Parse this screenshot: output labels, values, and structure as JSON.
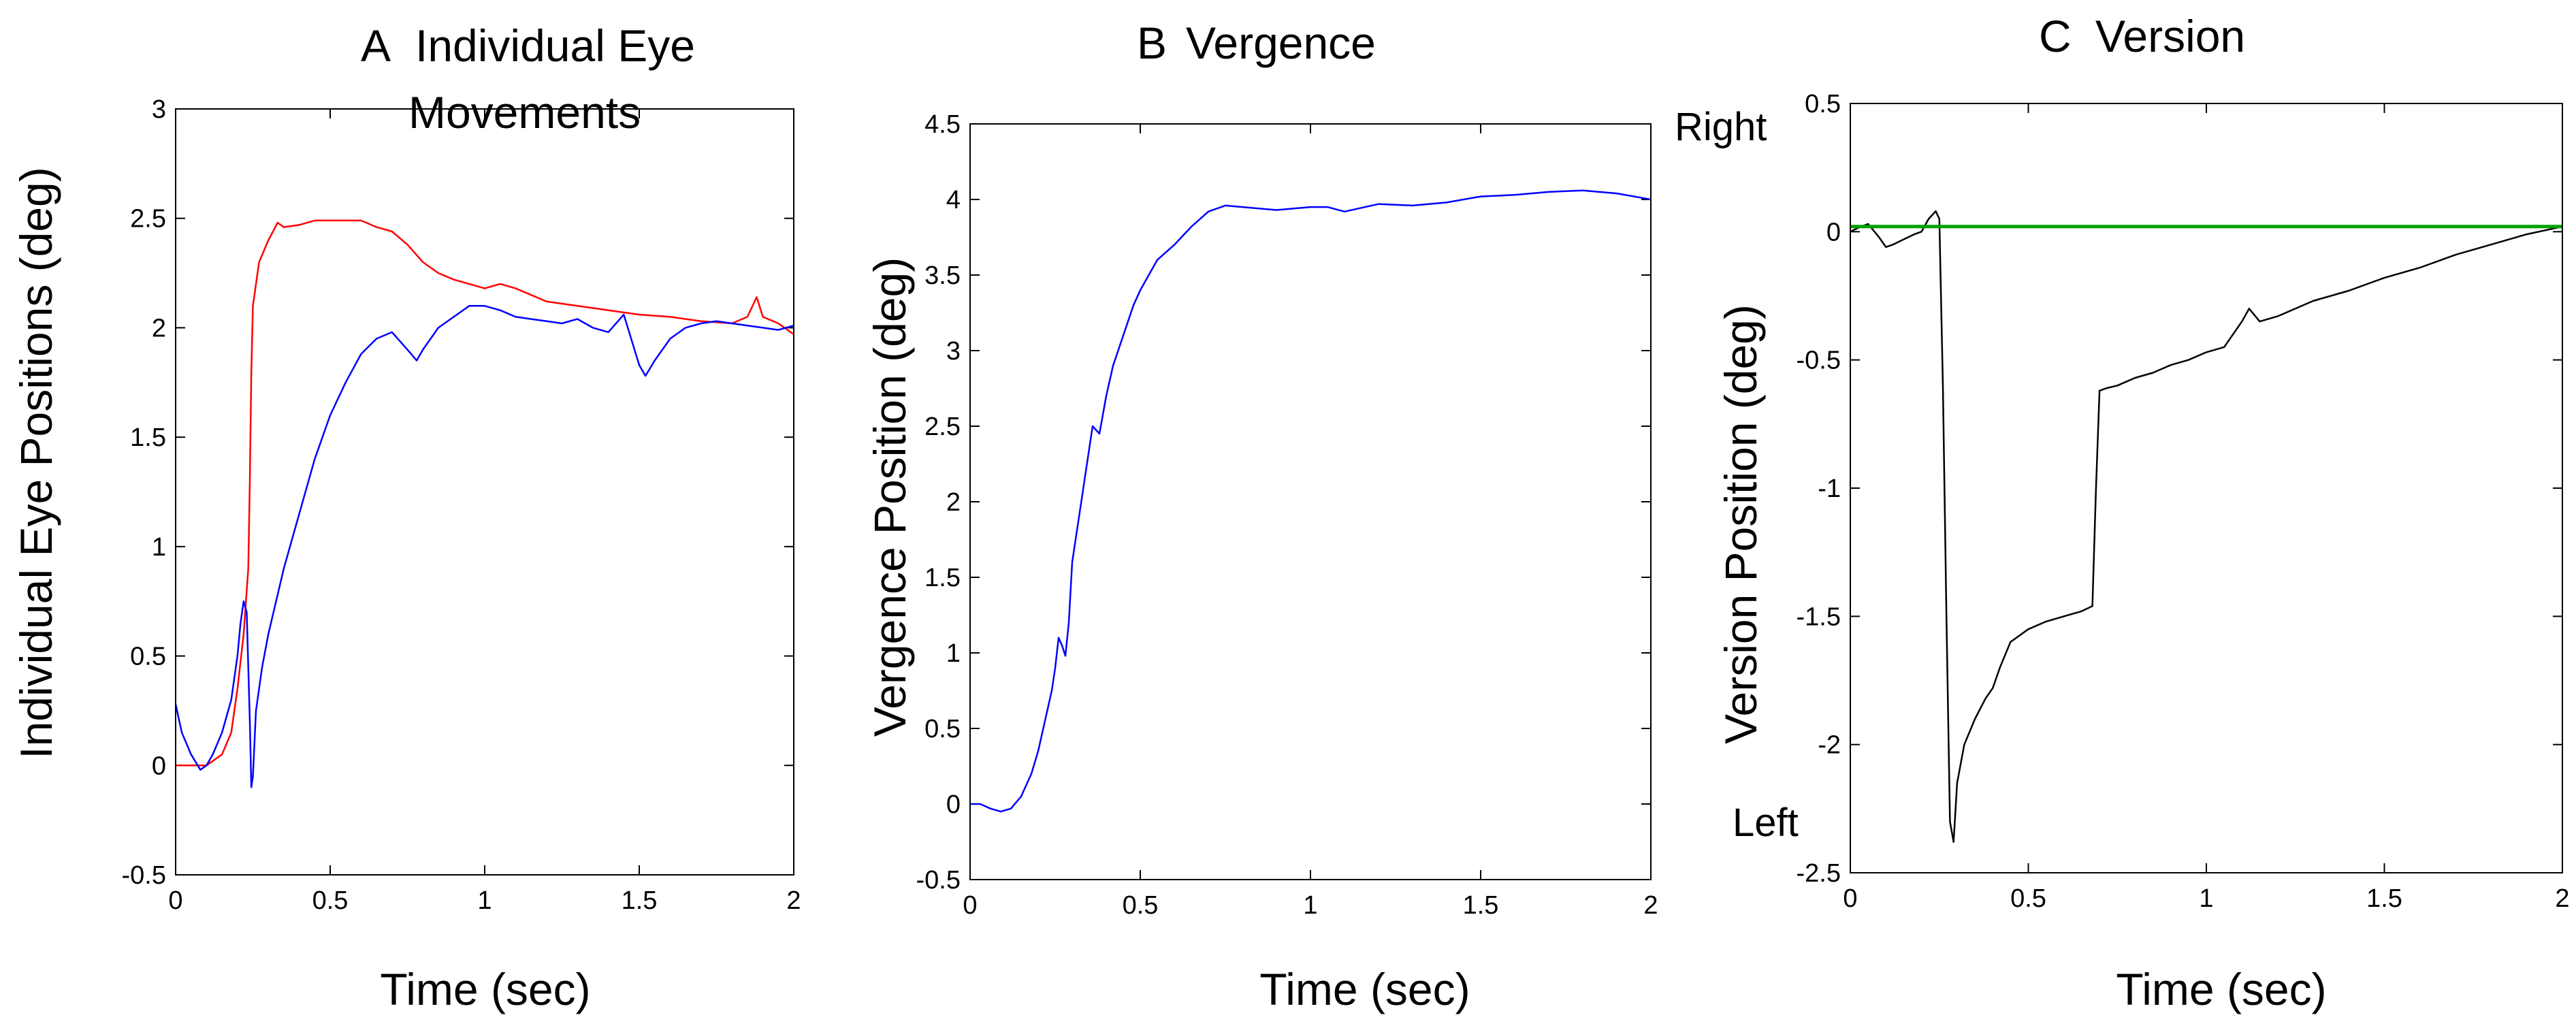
{
  "chart_data": [
    {
      "type": "line",
      "panel_letter": "A",
      "title_lines": [
        "Individual Eye",
        "Movements"
      ],
      "xlabel": "Time (sec)",
      "ylabel": "Individual Eye Positions (deg)",
      "xlim": [
        0,
        2
      ],
      "ylim": [
        -0.5,
        3
      ],
      "xticks": [
        0,
        0.5,
        1,
        1.5,
        2
      ],
      "xtick_labels": [
        "0",
        "0.5",
        "1",
        "1.5",
        "2"
      ],
      "yticks": [
        -0.5,
        0,
        0.5,
        1,
        1.5,
        2,
        2.5,
        3
      ],
      "ytick_labels": [
        "-0.5",
        "0",
        "0.5",
        "1",
        "1.5",
        "2",
        "2.5",
        "3"
      ],
      "grid": false,
      "series": [
        {
          "color": "#ff0000",
          "x": [
            0,
            0.05,
            0.1,
            0.15,
            0.18,
            0.2,
            0.22,
            0.235,
            0.24,
            0.245,
            0.25,
            0.27,
            0.3,
            0.33,
            0.35,
            0.4,
            0.45,
            0.5,
            0.55,
            0.6,
            0.65,
            0.7,
            0.75,
            0.8,
            0.85,
            0.9,
            0.95,
            1.0,
            1.05,
            1.1,
            1.15,
            1.2,
            1.3,
            1.4,
            1.5,
            1.6,
            1.7,
            1.8,
            1.85,
            1.88,
            1.9,
            1.95,
            2.0
          ],
          "y": [
            0.0,
            0.0,
            0.0,
            0.05,
            0.15,
            0.35,
            0.6,
            0.9,
            1.3,
            1.8,
            2.1,
            2.3,
            2.4,
            2.48,
            2.46,
            2.47,
            2.49,
            2.49,
            2.49,
            2.49,
            2.46,
            2.44,
            2.38,
            2.3,
            2.25,
            2.22,
            2.2,
            2.18,
            2.2,
            2.18,
            2.15,
            2.12,
            2.1,
            2.08,
            2.06,
            2.05,
            2.03,
            2.02,
            2.05,
            2.14,
            2.05,
            2.02,
            1.97
          ]
        },
        {
          "color": "#0000ff",
          "x": [
            0,
            0.02,
            0.05,
            0.08,
            0.1,
            0.12,
            0.15,
            0.18,
            0.2,
            0.21,
            0.22,
            0.23,
            0.24,
            0.245,
            0.25,
            0.26,
            0.28,
            0.3,
            0.35,
            0.4,
            0.45,
            0.5,
            0.55,
            0.6,
            0.65,
            0.7,
            0.75,
            0.78,
            0.8,
            0.85,
            0.9,
            0.95,
            1.0,
            1.05,
            1.1,
            1.15,
            1.2,
            1.25,
            1.3,
            1.35,
            1.4,
            1.45,
            1.5,
            1.52,
            1.55,
            1.6,
            1.65,
            1.7,
            1.75,
            1.8,
            1.85,
            1.9,
            1.95,
            2.0
          ],
          "y": [
            0.28,
            0.15,
            0.05,
            -0.02,
            0.0,
            0.05,
            0.15,
            0.3,
            0.5,
            0.65,
            0.75,
            0.7,
            0.2,
            -0.1,
            -0.05,
            0.25,
            0.45,
            0.6,
            0.9,
            1.15,
            1.4,
            1.6,
            1.75,
            1.88,
            1.95,
            1.98,
            1.9,
            1.85,
            1.9,
            2.0,
            2.05,
            2.1,
            2.1,
            2.08,
            2.05,
            2.04,
            2.03,
            2.02,
            2.04,
            2.0,
            1.98,
            2.06,
            1.83,
            1.78,
            1.85,
            1.95,
            2.0,
            2.02,
            2.03,
            2.02,
            2.01,
            2.0,
            1.99,
            2.01
          ]
        }
      ]
    },
    {
      "type": "line",
      "panel_letter": "B",
      "title_lines": [
        "Vergence"
      ],
      "xlabel": "Time (sec)",
      "ylabel": "Vergence Position (deg)",
      "xlim": [
        0,
        2
      ],
      "ylim": [
        -0.5,
        4.5
      ],
      "xticks": [
        0,
        0.5,
        1,
        1.5,
        2
      ],
      "xtick_labels": [
        "0",
        "0.5",
        "1",
        "1.5",
        "2"
      ],
      "yticks": [
        -0.5,
        0,
        0.5,
        1,
        1.5,
        2,
        2.5,
        3,
        3.5,
        4,
        4.5
      ],
      "ytick_labels": [
        "-0.5",
        "0",
        "0.5",
        "1",
        "1.5",
        "2",
        "2.5",
        "3",
        "3.5",
        "4",
        "4.5"
      ],
      "grid": false,
      "series": [
        {
          "color": "#0000ff",
          "x": [
            0,
            0.03,
            0.06,
            0.09,
            0.12,
            0.15,
            0.18,
            0.2,
            0.22,
            0.24,
            0.25,
            0.26,
            0.27,
            0.28,
            0.29,
            0.3,
            0.32,
            0.34,
            0.36,
            0.38,
            0.4,
            0.42,
            0.45,
            0.48,
            0.5,
            0.55,
            0.6,
            0.65,
            0.7,
            0.75,
            0.8,
            0.9,
            1.0,
            1.05,
            1.1,
            1.2,
            1.3,
            1.4,
            1.5,
            1.6,
            1.7,
            1.8,
            1.9,
            2.0
          ],
          "y": [
            0.0,
            0.0,
            -0.03,
            -0.05,
            -0.03,
            0.05,
            0.2,
            0.35,
            0.55,
            0.75,
            0.9,
            1.1,
            1.05,
            0.98,
            1.2,
            1.6,
            1.9,
            2.2,
            2.5,
            2.45,
            2.7,
            2.9,
            3.1,
            3.3,
            3.4,
            3.6,
            3.7,
            3.82,
            3.92,
            3.96,
            3.95,
            3.93,
            3.95,
            3.95,
            3.92,
            3.97,
            3.96,
            3.98,
            4.02,
            4.03,
            4.05,
            4.06,
            4.04,
            4.0
          ]
        }
      ]
    },
    {
      "type": "line",
      "panel_letter": "C",
      "title_lines": [
        "Version"
      ],
      "xlabel": "Time (sec)",
      "ylabel": "Version Position (deg)",
      "right_label": "Right",
      "left_label": "Left",
      "xlim": [
        0,
        2
      ],
      "ylim": [
        -2.5,
        0.5
      ],
      "xticks": [
        0,
        0.5,
        1,
        1.5,
        2
      ],
      "xtick_labels": [
        "0",
        "0.5",
        "1",
        "1.5",
        "2"
      ],
      "yticks": [
        -2.5,
        -2,
        -1.5,
        -1,
        -0.5,
        0,
        0.5
      ],
      "ytick_labels": [
        "-2.5",
        "-2",
        "-1.5",
        "-1",
        "-0.5",
        "0",
        "0.5"
      ],
      "grid": false,
      "series": [
        {
          "color": "#000000",
          "x": [
            0,
            0.03,
            0.05,
            0.08,
            0.1,
            0.12,
            0.15,
            0.18,
            0.2,
            0.22,
            0.24,
            0.25,
            0.26,
            0.27,
            0.28,
            0.29,
            0.3,
            0.32,
            0.35,
            0.38,
            0.4,
            0.42,
            0.45,
            0.5,
            0.55,
            0.6,
            0.65,
            0.68,
            0.69,
            0.7,
            0.72,
            0.75,
            0.8,
            0.85,
            0.9,
            0.95,
            1.0,
            1.05,
            1.1,
            1.12,
            1.15,
            1.2,
            1.3,
            1.4,
            1.5,
            1.6,
            1.7,
            1.8,
            1.9,
            2.0
          ],
          "y": [
            0.0,
            0.02,
            0.03,
            -0.02,
            -0.06,
            -0.05,
            -0.03,
            -0.01,
            0.0,
            0.05,
            0.08,
            0.05,
            -0.6,
            -1.5,
            -2.3,
            -2.38,
            -2.15,
            -2.0,
            -1.9,
            -1.82,
            -1.78,
            -1.7,
            -1.6,
            -1.55,
            -1.52,
            -1.5,
            -1.48,
            -1.46,
            -1.0,
            -0.62,
            -0.61,
            -0.6,
            -0.57,
            -0.55,
            -0.52,
            -0.5,
            -0.47,
            -0.45,
            -0.35,
            -0.3,
            -0.35,
            -0.33,
            -0.27,
            -0.23,
            -0.18,
            -0.14,
            -0.09,
            -0.05,
            -0.01,
            0.02
          ]
        },
        {
          "color": "#00a000",
          "x": [
            0,
            2
          ],
          "y": [
            0.02,
            0.02
          ]
        }
      ]
    }
  ]
}
